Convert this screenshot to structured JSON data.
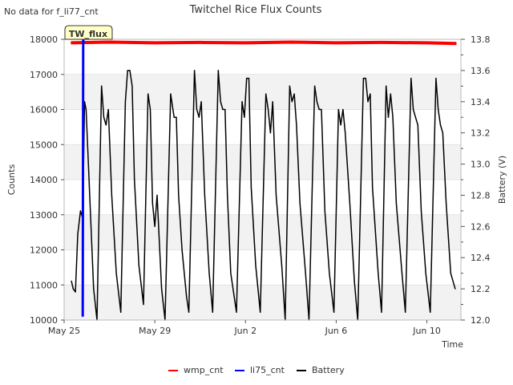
{
  "chart_data": {
    "type": "line",
    "title": "Twitchel Rice Flux Counts",
    "no_data_note": "No data for f_li77_cnt",
    "site_label": "TW_flux",
    "xlabel": "Time",
    "ylabel_left": "Counts",
    "ylabel_right": "Battery (V)",
    "x_axis": {
      "unit": "days since May 25",
      "range": [
        0,
        17.5
      ],
      "ticks": [
        {
          "value": 0,
          "label": "May 25"
        },
        {
          "value": 4,
          "label": "May 29"
        },
        {
          "value": 8,
          "label": "Jun 2"
        },
        {
          "value": 12,
          "label": "Jun 6"
        },
        {
          "value": 16,
          "label": "Jun 10"
        }
      ]
    },
    "y_left": {
      "range": [
        10000,
        18000
      ],
      "ticks": [
        {
          "value": 10000,
          "label": "10000"
        },
        {
          "value": 11000,
          "label": "11000"
        },
        {
          "value": 12000,
          "label": "12000"
        },
        {
          "value": 13000,
          "label": "13000"
        },
        {
          "value": 14000,
          "label": "14000"
        },
        {
          "value": 15000,
          "label": "15000"
        },
        {
          "value": 16000,
          "label": "16000"
        },
        {
          "value": 17000,
          "label": "17000"
        },
        {
          "value": 18000,
          "label": "18000"
        }
      ]
    },
    "y_right": {
      "range": [
        12.0,
        13.8
      ],
      "ticks": [
        {
          "value": 12.0,
          "label": "12.0"
        },
        {
          "value": 12.2,
          "label": "12.2"
        },
        {
          "value": 12.4,
          "label": "12.4"
        },
        {
          "value": 12.6,
          "label": "12.6"
        },
        {
          "value": 12.8,
          "label": "12.8"
        },
        {
          "value": 13.0,
          "label": "13.0"
        },
        {
          "value": 13.2,
          "label": "13.2"
        },
        {
          "value": 13.4,
          "label": "13.4"
        },
        {
          "value": 13.6,
          "label": "13.6"
        },
        {
          "value": 13.8,
          "label": "13.8"
        }
      ]
    },
    "series": [
      {
        "name": "wmp_cnt",
        "color": "#ff0000",
        "axis": "left",
        "x": [
          0.3,
          2,
          4,
          6,
          8,
          10,
          12,
          14,
          16,
          17.3
        ],
        "y": [
          17900,
          17920,
          17900,
          17910,
          17900,
          17920,
          17900,
          17910,
          17900,
          17880
        ]
      },
      {
        "name": "li75_cnt",
        "color": "#0000ff",
        "axis": "left",
        "x": [
          0.82,
          0.84,
          0.86
        ],
        "y": [
          10100,
          18000,
          17900
        ]
      },
      {
        "name": "Battery",
        "color": "#000000",
        "axis": "right",
        "x": [
          0.32,
          0.4,
          0.5,
          0.6,
          0.72,
          0.82,
          0.9,
          0.97,
          1.1,
          1.3,
          1.45,
          1.65,
          1.75,
          1.85,
          1.95,
          2.1,
          2.3,
          2.5,
          2.7,
          2.8,
          2.9,
          3.0,
          3.1,
          3.3,
          3.5,
          3.7,
          3.8,
          3.9,
          4.0,
          4.1,
          4.3,
          4.45,
          4.7,
          4.85,
          4.95,
          5.05,
          5.2,
          5.4,
          5.5,
          5.75,
          5.85,
          5.95,
          6.05,
          6.2,
          6.4,
          6.55,
          6.8,
          6.9,
          7.0,
          7.1,
          7.2,
          7.35,
          7.6,
          7.85,
          7.95,
          8.05,
          8.15,
          8.25,
          8.45,
          8.65,
          8.9,
          9.0,
          9.1,
          9.2,
          9.35,
          9.6,
          9.75,
          9.95,
          10.05,
          10.15,
          10.25,
          10.4,
          10.65,
          10.8,
          11.05,
          11.15,
          11.25,
          11.35,
          11.5,
          11.7,
          11.9,
          12.1,
          12.2,
          12.3,
          12.4,
          12.6,
          12.8,
          12.95,
          13.2,
          13.3,
          13.4,
          13.5,
          13.6,
          13.85,
          14.0,
          14.2,
          14.3,
          14.4,
          14.5,
          14.65,
          14.9,
          15.05,
          15.3,
          15.4,
          15.5,
          15.6,
          15.75,
          15.95,
          16.15,
          16.4,
          16.5,
          16.6,
          16.7,
          16.85,
          17.05,
          17.25
        ],
        "y": [
          12.25,
          12.2,
          12.18,
          12.55,
          12.7,
          12.65,
          13.4,
          13.35,
          12.9,
          12.2,
          12.0,
          13.5,
          13.3,
          13.25,
          13.35,
          12.8,
          12.3,
          12.05,
          13.4,
          13.6,
          13.6,
          13.5,
          12.9,
          12.35,
          12.1,
          13.45,
          13.35,
          12.75,
          12.6,
          12.8,
          12.2,
          12.0,
          13.45,
          13.3,
          13.3,
          12.8,
          12.45,
          12.15,
          12.05,
          13.6,
          13.35,
          13.3,
          13.4,
          12.8,
          12.3,
          12.05,
          13.6,
          13.4,
          13.35,
          13.35,
          12.8,
          12.3,
          12.05,
          13.4,
          13.3,
          13.55,
          13.55,
          12.85,
          12.35,
          12.05,
          13.45,
          13.35,
          13.2,
          13.4,
          12.8,
          12.35,
          12.0,
          13.5,
          13.4,
          13.45,
          13.25,
          12.75,
          12.3,
          12.0,
          13.5,
          13.4,
          13.35,
          13.35,
          12.7,
          12.3,
          12.05,
          13.35,
          13.25,
          13.35,
          13.2,
          12.75,
          12.25,
          12.0,
          13.55,
          13.55,
          13.4,
          13.45,
          12.85,
          12.3,
          12.05,
          13.5,
          13.3,
          13.45,
          13.3,
          12.75,
          12.3,
          12.05,
          13.55,
          13.35,
          13.3,
          13.25,
          12.7,
          12.3,
          12.05,
          13.55,
          13.35,
          13.25,
          13.2,
          12.75,
          12.3,
          12.2
        ]
      }
    ],
    "legend": {
      "position": "bottom-center",
      "entries": [
        {
          "name": "wmp_cnt",
          "color": "#ff0000"
        },
        {
          "name": "li75_cnt",
          "color": "#0000ff"
        },
        {
          "name": "Battery",
          "color": "#000000"
        }
      ]
    }
  }
}
